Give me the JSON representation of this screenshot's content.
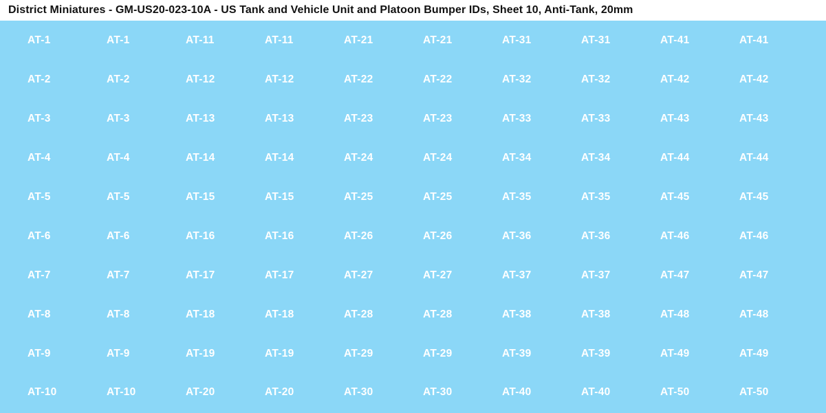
{
  "title": "District Miniatures - GM-US20-023-10A - US Tank and Vehicle Unit and Platoon Bumper IDs, Sheet 10, Anti-Tank, 20mm",
  "sheet": {
    "background_color": "#8BD7F7",
    "label_color": "#FFFFFF",
    "columns": 10,
    "rows": [
      [
        "AT-1",
        "AT-1",
        "AT-11",
        "AT-11",
        "AT-21",
        "AT-21",
        "AT-31",
        "AT-31",
        "AT-41",
        "AT-41"
      ],
      [
        "AT-2",
        "AT-2",
        "AT-12",
        "AT-12",
        "AT-22",
        "AT-22",
        "AT-32",
        "AT-32",
        "AT-42",
        "AT-42"
      ],
      [
        "AT-3",
        "AT-3",
        "AT-13",
        "AT-13",
        "AT-23",
        "AT-23",
        "AT-33",
        "AT-33",
        "AT-43",
        "AT-43"
      ],
      [
        "AT-4",
        "AT-4",
        "AT-14",
        "AT-14",
        "AT-24",
        "AT-24",
        "AT-34",
        "AT-34",
        "AT-44",
        "AT-44"
      ],
      [
        "AT-5",
        "AT-5",
        "AT-15",
        "AT-15",
        "AT-25",
        "AT-25",
        "AT-35",
        "AT-35",
        "AT-45",
        "AT-45"
      ],
      [
        "AT-6",
        "AT-6",
        "AT-16",
        "AT-16",
        "AT-26",
        "AT-26",
        "AT-36",
        "AT-36",
        "AT-46",
        "AT-46"
      ],
      [
        "AT-7",
        "AT-7",
        "AT-17",
        "AT-17",
        "AT-27",
        "AT-27",
        "AT-37",
        "AT-37",
        "AT-47",
        "AT-47"
      ],
      [
        "AT-8",
        "AT-8",
        "AT-18",
        "AT-18",
        "AT-28",
        "AT-28",
        "AT-38",
        "AT-38",
        "AT-48",
        "AT-48"
      ],
      [
        "AT-9",
        "AT-9",
        "AT-19",
        "AT-19",
        "AT-29",
        "AT-29",
        "AT-39",
        "AT-39",
        "AT-49",
        "AT-49"
      ],
      [
        "AT-10",
        "AT-10",
        "AT-20",
        "AT-20",
        "AT-30",
        "AT-30",
        "AT-40",
        "AT-40",
        "AT-50",
        "AT-50"
      ]
    ]
  }
}
